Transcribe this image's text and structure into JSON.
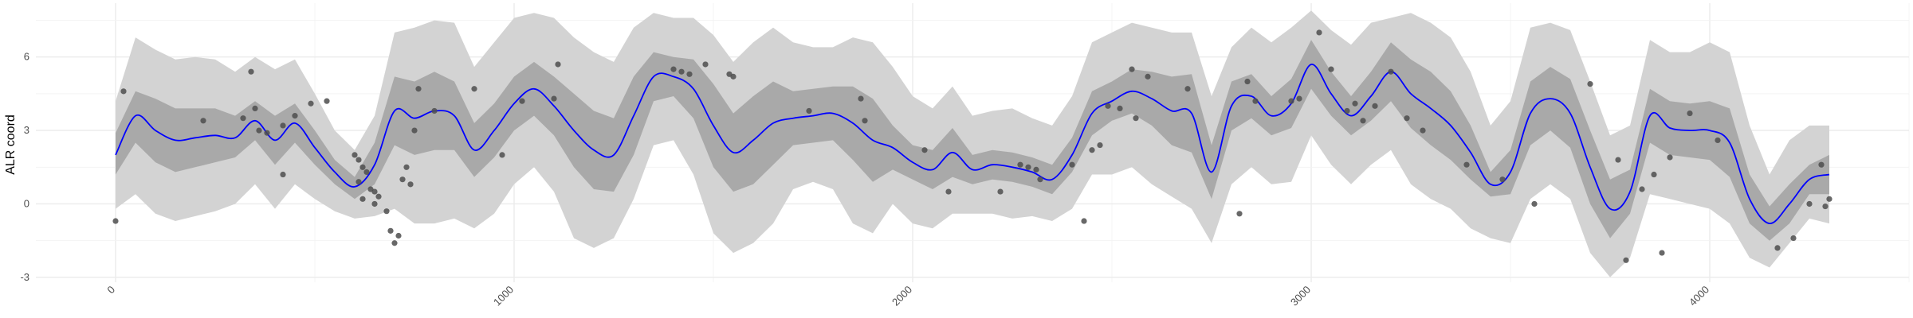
{
  "chart_data": {
    "type": "line",
    "title": "",
    "xlabel": "",
    "ylabel": "ALR coord",
    "xlim": [
      -200,
      4500
    ],
    "ylim": [
      -3.2,
      8.2
    ],
    "grid": true,
    "x_ticks": [
      0,
      1000,
      2000,
      3000,
      4000
    ],
    "y_ticks": [
      -3,
      0,
      3,
      6
    ],
    "colors": {
      "mean_line": "#0000ff",
      "inner_band": "#a9a9a9",
      "outer_band": "#d3d3d3",
      "points": "#4d4d4d",
      "grid": "#ebebeb"
    },
    "series": [
      {
        "kind": "mean",
        "x": [
          0,
          50,
          100,
          150,
          200,
          250,
          300,
          350,
          400,
          450,
          500,
          550,
          600,
          650,
          700,
          750,
          800,
          850,
          900,
          950,
          1000,
          1050,
          1100,
          1150,
          1200,
          1250,
          1300,
          1350,
          1400,
          1450,
          1500,
          1550,
          1600,
          1650,
          1700,
          1750,
          1800,
          1850,
          1900,
          1950,
          2000,
          2050,
          2100,
          2150,
          2200,
          2250,
          2300,
          2350,
          2400,
          2450,
          2500,
          2550,
          2600,
          2650,
          2700,
          2750,
          2800,
          2850,
          2900,
          2950,
          3000,
          3050,
          3100,
          3150,
          3200,
          3250,
          3300,
          3350,
          3400,
          3450,
          3500,
          3550,
          3600,
          3650,
          3700,
          3750,
          3800,
          3850,
          3900,
          3950,
          4000,
          4050,
          4100,
          4150,
          4200,
          4250,
          4300
        ],
        "y": [
          2.0,
          3.6,
          3.0,
          2.6,
          2.7,
          2.8,
          2.7,
          3.4,
          2.6,
          3.3,
          2.3,
          1.3,
          0.7,
          1.6,
          3.8,
          3.5,
          3.8,
          3.6,
          2.2,
          3.0,
          4.1,
          4.7,
          4.0,
          3.0,
          2.2,
          2.0,
          3.6,
          5.2,
          5.2,
          4.7,
          3.2,
          2.1,
          2.6,
          3.3,
          3.5,
          3.6,
          3.7,
          3.3,
          2.6,
          2.3,
          1.7,
          1.4,
          2.1,
          1.4,
          1.6,
          1.5,
          1.3,
          1.0,
          2.0,
          3.7,
          4.2,
          4.6,
          4.3,
          3.8,
          3.7,
          1.3,
          4.0,
          4.4,
          3.6,
          4.1,
          5.7,
          4.5,
          3.6,
          4.4,
          5.4,
          4.5,
          3.9,
          3.2,
          2.1,
          0.8,
          1.3,
          3.7,
          4.3,
          3.7,
          1.5,
          -0.2,
          0.5,
          3.6,
          3.1,
          3.0,
          3.0,
          2.5,
          0.2,
          -0.8,
          0.0,
          1.0,
          1.2
        ]
      },
      {
        "kind": "inner_band",
        "x": [
          0,
          50,
          100,
          150,
          200,
          250,
          300,
          350,
          400,
          450,
          500,
          550,
          600,
          650,
          700,
          750,
          800,
          850,
          900,
          950,
          1000,
          1050,
          1100,
          1150,
          1200,
          1250,
          1300,
          1350,
          1400,
          1450,
          1500,
          1550,
          1600,
          1650,
          1700,
          1750,
          1800,
          1850,
          1900,
          1950,
          2000,
          2050,
          2100,
          2150,
          2200,
          2250,
          2300,
          2350,
          2400,
          2450,
          2500,
          2550,
          2600,
          2650,
          2700,
          2750,
          2800,
          2850,
          2900,
          2950,
          3000,
          3050,
          3100,
          3150,
          3200,
          3250,
          3300,
          3350,
          3400,
          3450,
          3500,
          3550,
          3600,
          3650,
          3700,
          3750,
          3800,
          3850,
          3900,
          3950,
          4000,
          4050,
          4100,
          4150,
          4200,
          4250,
          4300
        ],
        "lower": [
          1.2,
          2.5,
          1.7,
          1.3,
          1.5,
          1.7,
          1.9,
          2.6,
          1.6,
          2.5,
          1.6,
          0.8,
          0.2,
          0.8,
          2.4,
          2.0,
          2.2,
          2.2,
          1.1,
          1.9,
          3.0,
          3.6,
          2.8,
          1.5,
          0.6,
          0.5,
          2.0,
          4.2,
          4.4,
          3.5,
          1.5,
          0.5,
          0.8,
          1.6,
          2.4,
          2.5,
          2.6,
          1.8,
          0.9,
          1.4,
          1.0,
          0.6,
          1.1,
          0.8,
          1.0,
          0.9,
          0.7,
          0.4,
          1.3,
          2.8,
          3.4,
          3.7,
          3.2,
          2.4,
          2.1,
          0.2,
          3.0,
          3.5,
          2.8,
          3.1,
          4.7,
          3.6,
          2.8,
          3.4,
          4.2,
          3.1,
          2.4,
          1.8,
          1.0,
          0.3,
          0.4,
          2.4,
          3.0,
          2.3,
          0.0,
          -1.4,
          -0.4,
          2.5,
          2.0,
          1.9,
          1.8,
          1.1,
          -0.8,
          -1.5,
          -0.8,
          0.4,
          0.4
        ],
        "upper": [
          2.9,
          4.6,
          4.3,
          3.9,
          3.9,
          3.9,
          3.6,
          4.2,
          3.6,
          4.1,
          3.0,
          1.8,
          1.1,
          2.5,
          5.2,
          5.0,
          5.4,
          5.0,
          3.3,
          4.1,
          5.2,
          5.8,
          5.2,
          4.5,
          3.8,
          3.5,
          5.2,
          6.2,
          6.0,
          5.9,
          4.9,
          3.7,
          4.4,
          5.0,
          4.6,
          4.7,
          4.8,
          4.8,
          4.3,
          3.2,
          2.4,
          2.2,
          3.1,
          2.0,
          2.2,
          2.1,
          1.9,
          1.6,
          2.7,
          4.6,
          5.0,
          5.5,
          5.4,
          5.2,
          5.3,
          2.4,
          5.0,
          5.3,
          4.4,
          5.1,
          6.7,
          5.4,
          4.4,
          5.4,
          6.6,
          5.9,
          5.4,
          4.6,
          3.2,
          1.3,
          2.2,
          5.0,
          5.6,
          5.1,
          3.0,
          1.0,
          1.4,
          4.7,
          4.2,
          4.1,
          4.2,
          3.9,
          1.2,
          -0.1,
          0.8,
          1.6,
          2.0
        ]
      },
      {
        "kind": "outer_band",
        "x": [
          0,
          50,
          100,
          150,
          200,
          250,
          300,
          350,
          400,
          450,
          500,
          550,
          600,
          650,
          700,
          750,
          800,
          850,
          900,
          950,
          1000,
          1050,
          1100,
          1150,
          1200,
          1250,
          1300,
          1350,
          1400,
          1450,
          1500,
          1550,
          1600,
          1650,
          1700,
          1750,
          1800,
          1850,
          1900,
          1950,
          2000,
          2050,
          2100,
          2150,
          2200,
          2250,
          2300,
          2350,
          2400,
          2450,
          2500,
          2550,
          2600,
          2650,
          2700,
          2750,
          2800,
          2850,
          2900,
          2950,
          3000,
          3050,
          3100,
          3150,
          3200,
          3250,
          3300,
          3350,
          3400,
          3450,
          3500,
          3550,
          3600,
          3650,
          3700,
          3750,
          3800,
          3850,
          3900,
          3950,
          4000,
          4050,
          4100,
          4150,
          4200,
          4250,
          4300
        ],
        "lower": [
          -0.2,
          0.4,
          -0.4,
          -0.7,
          -0.5,
          -0.3,
          0.0,
          0.8,
          -0.2,
          0.8,
          0.2,
          -0.3,
          -0.6,
          -0.5,
          -0.2,
          -0.8,
          -0.8,
          -0.6,
          -1.0,
          -0.4,
          0.8,
          1.5,
          0.5,
          -1.4,
          -1.8,
          -1.4,
          0.2,
          2.4,
          2.6,
          1.2,
          -1.2,
          -2.0,
          -1.6,
          -0.8,
          0.6,
          0.9,
          0.6,
          -0.8,
          -1.2,
          0.0,
          -0.8,
          -1.0,
          -0.4,
          -0.4,
          -0.4,
          -0.6,
          -0.5,
          -0.7,
          -0.2,
          1.2,
          1.2,
          1.5,
          0.8,
          0.3,
          -0.2,
          -1.6,
          0.8,
          1.5,
          0.8,
          0.9,
          2.8,
          1.6,
          0.8,
          1.6,
          2.2,
          0.8,
          0.2,
          -0.2,
          -1.0,
          -1.4,
          -1.6,
          0.2,
          0.8,
          0.2,
          -2.0,
          -3.0,
          -2.2,
          0.4,
          0.2,
          0.0,
          -0.2,
          -0.8,
          -2.2,
          -2.6,
          -1.6,
          -0.6,
          -0.8
        ],
        "upper": [
          4.2,
          6.8,
          6.3,
          5.9,
          6.0,
          5.9,
          5.4,
          6.0,
          5.5,
          5.9,
          4.5,
          3.0,
          2.2,
          3.6,
          7.0,
          7.2,
          7.5,
          7.4,
          5.6,
          6.6,
          7.6,
          7.8,
          7.6,
          6.8,
          6.2,
          5.8,
          7.2,
          7.8,
          7.6,
          7.6,
          6.9,
          5.8,
          6.6,
          7.2,
          6.6,
          6.4,
          6.4,
          6.8,
          6.6,
          5.6,
          4.4,
          3.9,
          4.8,
          3.6,
          3.8,
          3.9,
          3.5,
          3.2,
          4.4,
          6.6,
          7.0,
          7.4,
          7.2,
          7.0,
          7.0,
          4.4,
          6.4,
          7.2,
          6.6,
          7.2,
          7.9,
          7.1,
          6.5,
          7.4,
          7.6,
          7.8,
          7.4,
          6.8,
          5.4,
          3.2,
          4.2,
          7.2,
          7.4,
          7.1,
          5.0,
          2.8,
          3.2,
          6.7,
          6.2,
          6.2,
          6.6,
          6.2,
          3.2,
          1.2,
          2.6,
          3.2,
          3.2
        ]
      },
      {
        "kind": "points",
        "x": [
          0,
          20,
          220,
          320,
          340,
          350,
          360,
          380,
          420,
          450,
          420,
          490,
          530,
          600,
          610,
          620,
          630,
          610,
          640,
          650,
          620,
          660,
          650,
          680,
          690,
          700,
          710,
          720,
          730,
          740,
          750,
          760,
          800,
          900,
          970,
          1020,
          1110,
          1100,
          1400,
          1420,
          1440,
          1480,
          1540,
          1550,
          1740,
          1870,
          1880,
          2030,
          2090,
          2220,
          2270,
          2290,
          2310,
          2320,
          2400,
          2430,
          2450,
          2470,
          2490,
          2520,
          2550,
          2560,
          2590,
          2690,
          2820,
          2840,
          2860,
          2950,
          2970,
          3020,
          3050,
          3090,
          3110,
          3130,
          3160,
          3200,
          3240,
          3280,
          3390,
          3480,
          3560,
          3700,
          3770,
          3790,
          3830,
          3860,
          3880,
          3900,
          3950,
          4020,
          4170,
          4210,
          4250,
          4280,
          4290,
          4300
        ],
        "y": [
          -0.7,
          4.6,
          3.4,
          3.5,
          5.4,
          3.9,
          3.0,
          2.9,
          3.2,
          3.6,
          1.2,
          4.1,
          4.2,
          2.0,
          1.8,
          1.5,
          1.3,
          0.9,
          0.6,
          0.5,
          0.2,
          0.3,
          0.0,
          -0.3,
          -1.1,
          -1.6,
          -1.3,
          1.0,
          1.5,
          0.8,
          3.0,
          4.7,
          3.8,
          4.7,
          2.0,
          4.2,
          5.7,
          4.3,
          5.5,
          5.4,
          5.3,
          5.7,
          5.3,
          5.2,
          3.8,
          4.3,
          3.4,
          2.2,
          0.5,
          0.5,
          1.6,
          1.5,
          1.4,
          1.0,
          1.6,
          -0.7,
          2.2,
          2.4,
          4.0,
          3.9,
          5.5,
          3.5,
          5.2,
          4.7,
          -0.4,
          5.0,
          4.2,
          4.2,
          4.3,
          7.0,
          5.5,
          3.8,
          4.1,
          3.4,
          4.0,
          5.4,
          3.5,
          3.0,
          1.6,
          1.0,
          0.0,
          4.9,
          1.8,
          -2.3,
          0.6,
          1.2,
          -2.0,
          1.9,
          3.7,
          2.6,
          -1.8,
          -1.4,
          0.0,
          1.6,
          -0.1,
          0.2
        ]
      }
    ]
  }
}
